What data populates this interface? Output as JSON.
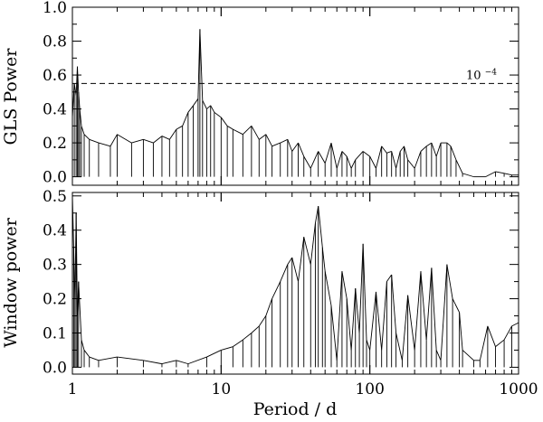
{
  "chart_data": [
    {
      "type": "line",
      "panel": "top",
      "xlabel": "",
      "ylabel": "GLS Power",
      "xscale": "log",
      "xlim": [
        1,
        1000
      ],
      "ylim": [
        -0.05,
        1.0
      ],
      "yticks": [
        0.0,
        0.2,
        0.4,
        0.6,
        0.8,
        1.0
      ],
      "yticklabels": [
        "0.0",
        "0.2",
        "0.4",
        "0.6",
        "0.8",
        "1.0"
      ],
      "threshold": {
        "y": 0.55,
        "label": "10",
        "label_exp": "−4",
        "style": "dashed"
      },
      "series": [
        {
          "x": [
            1.0,
            1.03,
            1.06,
            1.08,
            1.1,
            1.12,
            1.15,
            1.2,
            1.3,
            1.5,
            1.8,
            2.0,
            2.5,
            3.0,
            3.5,
            4.0,
            4.5,
            5.0,
            5.5,
            6.0,
            6.5,
            7.0,
            7.2,
            7.5,
            8.0,
            8.5,
            9.0,
            10.0,
            11.0,
            12.0,
            14.0,
            16.0,
            18.0,
            20.0,
            22.0,
            25.0,
            28.0,
            30.0,
            33.0,
            36.0,
            40.0,
            45.0,
            50.0,
            55.0,
            60.0,
            65.0,
            70.0,
            75.0,
            80.0,
            90.0,
            100.0,
            110.0,
            120.0,
            130.0,
            140.0,
            150.0,
            160.0,
            170.0,
            180.0,
            200.0,
            220.0,
            240.0,
            260.0,
            280.0,
            300.0,
            330.0,
            350.0,
            380.0,
            420.0,
            500.0,
            600.0,
            700.0,
            800.0,
            900.0,
            1000.0
          ],
          "y": [
            0.35,
            0.55,
            0.48,
            0.65,
            0.5,
            0.4,
            0.3,
            0.25,
            0.22,
            0.2,
            0.18,
            0.25,
            0.2,
            0.22,
            0.2,
            0.24,
            0.22,
            0.28,
            0.3,
            0.38,
            0.42,
            0.46,
            0.87,
            0.45,
            0.4,
            0.42,
            0.38,
            0.35,
            0.3,
            0.28,
            0.25,
            0.3,
            0.22,
            0.25,
            0.18,
            0.2,
            0.22,
            0.15,
            0.2,
            0.12,
            0.05,
            0.15,
            0.08,
            0.2,
            0.05,
            0.15,
            0.12,
            0.05,
            0.1,
            0.15,
            0.12,
            0.05,
            0.18,
            0.14,
            0.15,
            0.05,
            0.15,
            0.18,
            0.1,
            0.05,
            0.15,
            0.18,
            0.2,
            0.12,
            0.2,
            0.2,
            0.18,
            0.1,
            0.02,
            0.0,
            0.0,
            0.03,
            0.02,
            0.01,
            0.01
          ]
        }
      ]
    },
    {
      "type": "line",
      "panel": "bottom",
      "xlabel": "Period / d",
      "ylabel": "Window power",
      "xscale": "log",
      "xlim": [
        1,
        1000
      ],
      "ylim": [
        -0.02,
        0.51
      ],
      "xticks": [
        1,
        10,
        100,
        1000
      ],
      "xticklabels": [
        "1",
        "10",
        "100",
        "1000"
      ],
      "yticks": [
        0.0,
        0.1,
        0.2,
        0.3,
        0.4,
        0.5
      ],
      "yticklabels": [
        "0.0",
        "0.1",
        "0.2",
        "0.3",
        "0.4",
        "0.5"
      ],
      "series": [
        {
          "x": [
            1.0,
            1.02,
            1.04,
            1.06,
            1.08,
            1.1,
            1.15,
            1.2,
            1.3,
            1.5,
            2.0,
            3.0,
            4.0,
            5.0,
            6.0,
            8.0,
            10.0,
            12.0,
            14.0,
            16.0,
            18.0,
            20.0,
            22.0,
            25.0,
            28.0,
            30.0,
            33.0,
            36.0,
            40.0,
            43.0,
            45.0,
            48.0,
            50.0,
            55.0,
            60.0,
            65.0,
            70.0,
            75.0,
            80.0,
            85.0,
            90.0,
            95.0,
            100.0,
            110.0,
            120.0,
            130.0,
            140.0,
            150.0,
            165.0,
            180.0,
            200.0,
            220.0,
            240.0,
            260.0,
            280.0,
            300.0,
            330.0,
            360.0,
            400.0,
            420.0,
            500.0,
            550.0,
            620.0,
            700.0,
            800.0,
            900.0,
            1000.0
          ],
          "y": [
            0.5,
            0.35,
            0.2,
            0.45,
            0.15,
            0.25,
            0.08,
            0.05,
            0.03,
            0.02,
            0.03,
            0.02,
            0.01,
            0.02,
            0.01,
            0.03,
            0.05,
            0.06,
            0.08,
            0.1,
            0.12,
            0.15,
            0.2,
            0.25,
            0.3,
            0.32,
            0.25,
            0.38,
            0.3,
            0.42,
            0.47,
            0.35,
            0.28,
            0.18,
            0.02,
            0.28,
            0.2,
            0.05,
            0.23,
            0.1,
            0.36,
            0.08,
            0.05,
            0.22,
            0.05,
            0.25,
            0.27,
            0.1,
            0.02,
            0.21,
            0.05,
            0.28,
            0.08,
            0.29,
            0.05,
            0.02,
            0.3,
            0.2,
            0.16,
            0.05,
            0.02,
            0.02,
            0.12,
            0.06,
            0.08,
            0.12,
            0.13
          ]
        }
      ]
    }
  ]
}
